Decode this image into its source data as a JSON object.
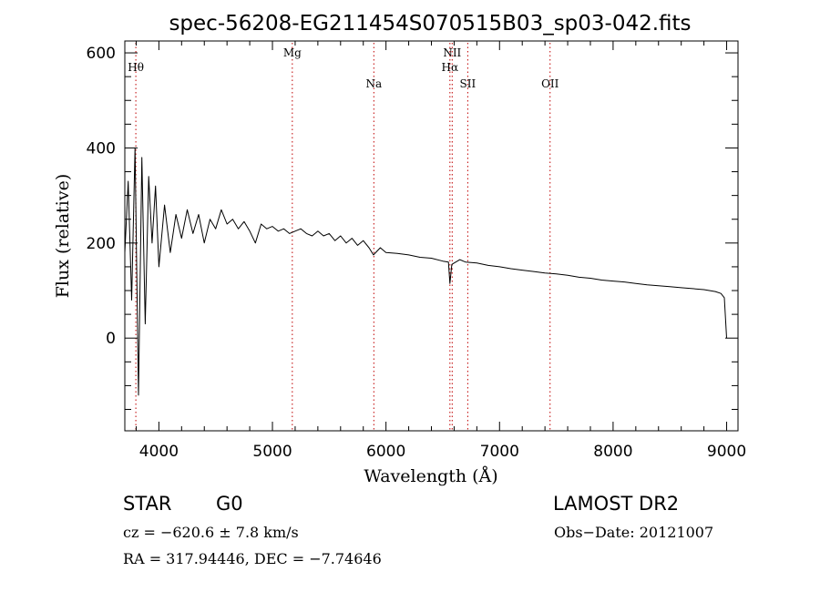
{
  "chart_data": {
    "type": "line",
    "title": "spec-56208-EG211454S070515B03_sp03-042.fits",
    "xlabel": "Wavelength (Å)",
    "ylabel": "Flux (relative)",
    "xlim": [
      3700,
      9100
    ],
    "ylim": [
      -195,
      625
    ],
    "x_ticks": [
      4000,
      5000,
      6000,
      7000,
      8000,
      9000
    ],
    "y_ticks": [
      0,
      200,
      400,
      600
    ],
    "x_minor_step": 200,
    "y_minor_step": 50,
    "grid": false,
    "series": [
      {
        "color": "#000000",
        "x": [
          3700,
          3730,
          3760,
          3790,
          3820,
          3850,
          3880,
          3910,
          3940,
          3970,
          4000,
          4050,
          4100,
          4150,
          4200,
          4250,
          4300,
          4350,
          4400,
          4450,
          4500,
          4550,
          4600,
          4650,
          4700,
          4750,
          4800,
          4850,
          4900,
          4950,
          5000,
          5050,
          5100,
          5150,
          5200,
          5250,
          5300,
          5350,
          5400,
          5450,
          5500,
          5550,
          5600,
          5650,
          5700,
          5750,
          5800,
          5850,
          5890,
          5950,
          6000,
          6100,
          6200,
          6300,
          6400,
          6500,
          6550,
          6563,
          6580,
          6650,
          6700,
          6800,
          6900,
          7000,
          7100,
          7200,
          7300,
          7400,
          7500,
          7600,
          7700,
          7800,
          7900,
          8000,
          8100,
          8200,
          8300,
          8400,
          8500,
          8600,
          8700,
          8800,
          8900,
          8950,
          8980,
          9000
        ],
        "y": [
          180,
          330,
          80,
          400,
          -120,
          380,
          30,
          340,
          200,
          320,
          150,
          280,
          180,
          260,
          210,
          270,
          220,
          260,
          200,
          250,
          230,
          270,
          240,
          250,
          230,
          245,
          225,
          200,
          240,
          230,
          235,
          225,
          230,
          220,
          225,
          230,
          220,
          215,
          225,
          215,
          220,
          205,
          215,
          200,
          210,
          195,
          205,
          190,
          175,
          190,
          180,
          178,
          175,
          170,
          168,
          162,
          160,
          115,
          155,
          165,
          160,
          158,
          153,
          150,
          146,
          143,
          140,
          137,
          135,
          132,
          128,
          126,
          122,
          120,
          118,
          115,
          112,
          110,
          108,
          106,
          104,
          102,
          98,
          94,
          85,
          0
        ]
      }
    ],
    "line_markers": [
      {
        "label": "Hθ",
        "x": 3797,
        "row": 1
      },
      {
        "label": "Mg",
        "x": 5175,
        "row": 0
      },
      {
        "label": "Na",
        "x": 5893,
        "row": 2
      },
      {
        "label": "NII",
        "x": 6583,
        "row": 0
      },
      {
        "label": "Hα",
        "x": 6563,
        "row": 1
      },
      {
        "label": "SII",
        "x": 6720,
        "row": 2
      },
      {
        "label": "OII",
        "x": 7445,
        "row": 2
      }
    ],
    "marker_color": "#c00000"
  },
  "info": {
    "object_class": "STAR",
    "subclass": "G0",
    "survey": "LAMOST DR2",
    "redshift": "cz = −620.6 ± 7.8 km/s",
    "obs_date": "Obs−Date: 20121007",
    "coords": "RA = 317.94446, DEC =  −7.74646"
  }
}
